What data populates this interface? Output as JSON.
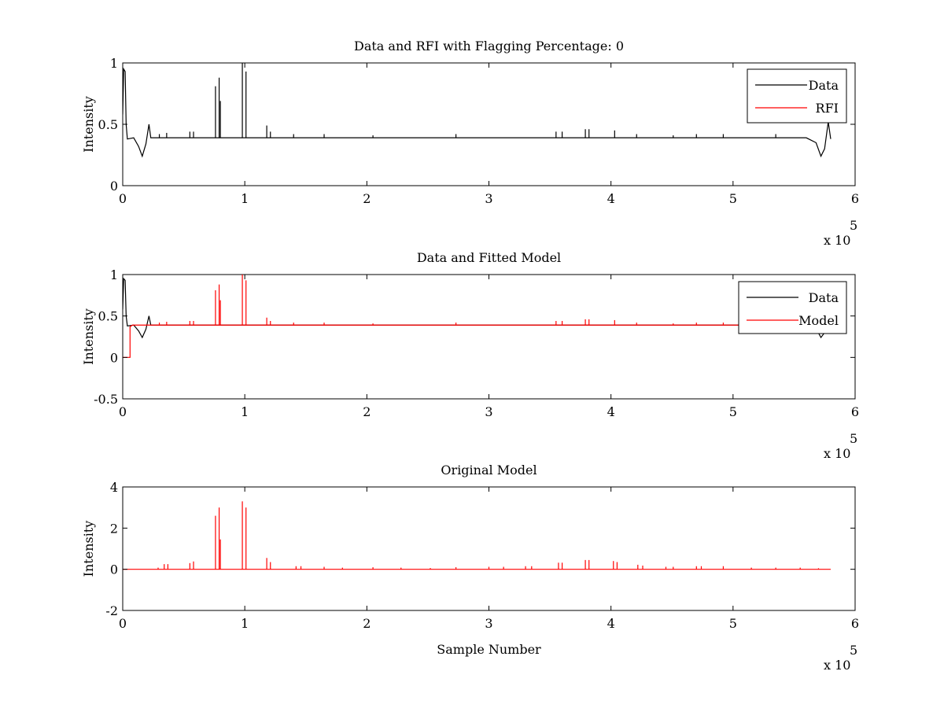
{
  "figure": {
    "background": "#ffffff"
  },
  "chart_data": [
    {
      "type": "line",
      "title": "Data and RFI with Flagging Percentage: 0",
      "xlabel": "",
      "ylabel": "Intensity",
      "xlim": [
        0,
        600000
      ],
      "ylim": [
        0,
        1
      ],
      "xticks": [
        0,
        100000,
        200000,
        300000,
        400000,
        500000,
        600000
      ],
      "xtick_labels": [
        "0",
        "1",
        "2",
        "3",
        "4",
        "5",
        "6"
      ],
      "yticks": [
        0,
        0.5,
        1
      ],
      "ytick_labels": [
        "0",
        "0.5",
        "1"
      ],
      "x_multiplier": "x 10",
      "x_multiplier_exp": "5",
      "legend": {
        "position": "top-right",
        "entries": [
          "Data",
          "RFI"
        ]
      },
      "series": [
        {
          "name": "Data",
          "color": "#000000",
          "baseline": 0.39,
          "points": [
            [
              0,
              0.58
            ],
            [
              800,
              0.95
            ],
            [
              2000,
              0.93
            ],
            [
              2800,
              0.5
            ],
            [
              3800,
              0.38
            ],
            [
              9000,
              0.39
            ],
            [
              13000,
              0.32
            ],
            [
              16000,
              0.24
            ],
            [
              19000,
              0.34
            ],
            [
              21500,
              0.5
            ],
            [
              23000,
              0.39
            ],
            [
              560000,
              0.39
            ],
            [
              568000,
              0.35
            ],
            [
              572000,
              0.24
            ],
            [
              575000,
              0.3
            ],
            [
              578000,
              0.52
            ],
            [
              580000,
              0.38
            ]
          ],
          "spikes": [
            [
              30000,
              0.42
            ],
            [
              36000,
              0.43
            ],
            [
              55000,
              0.44
            ],
            [
              58000,
              0.44
            ],
            [
              76000,
              0.81
            ],
            [
              79000,
              0.88
            ],
            [
              80000,
              0.69
            ],
            [
              98000,
              1.0
            ],
            [
              101000,
              0.93
            ],
            [
              118000,
              0.49
            ],
            [
              121000,
              0.44
            ],
            [
              140000,
              0.42
            ],
            [
              165000,
              0.42
            ],
            [
              205000,
              0.41
            ],
            [
              273000,
              0.42
            ],
            [
              355000,
              0.44
            ],
            [
              360000,
              0.44
            ],
            [
              379000,
              0.46
            ],
            [
              382000,
              0.46
            ],
            [
              403000,
              0.45
            ],
            [
              421000,
              0.42
            ],
            [
              451000,
              0.41
            ],
            [
              470000,
              0.42
            ],
            [
              492000,
              0.42
            ],
            [
              535000,
              0.42
            ]
          ]
        },
        {
          "name": "RFI",
          "color": "#ff0000",
          "points": []
        }
      ]
    },
    {
      "type": "line",
      "title": "Data and Fitted Model",
      "xlabel": "",
      "ylabel": "Intensity",
      "xlim": [
        0,
        600000
      ],
      "ylim": [
        -0.5,
        1
      ],
      "xticks": [
        0,
        100000,
        200000,
        300000,
        400000,
        500000,
        600000
      ],
      "xtick_labels": [
        "0",
        "1",
        "2",
        "3",
        "4",
        "5",
        "6"
      ],
      "yticks": [
        -0.5,
        0,
        0.5,
        1
      ],
      "ytick_labels": [
        "-0.5",
        "0",
        "0.5",
        "1"
      ],
      "x_multiplier": "x 10",
      "x_multiplier_exp": "5",
      "legend": {
        "position": "top-right",
        "entries": [
          "Data",
          "Model"
        ]
      },
      "series": [
        {
          "name": "Data",
          "color": "#000000",
          "baseline": 0.39,
          "points": [
            [
              0,
              0.58
            ],
            [
              800,
              0.95
            ],
            [
              2000,
              0.93
            ],
            [
              2800,
              0.5
            ],
            [
              3800,
              0.38
            ],
            [
              9000,
              0.39
            ],
            [
              13000,
              0.32
            ],
            [
              16000,
              0.24
            ],
            [
              19000,
              0.34
            ],
            [
              21500,
              0.5
            ],
            [
              23000,
              0.39
            ],
            [
              560000,
              0.39
            ],
            [
              568000,
              0.35
            ],
            [
              572000,
              0.24
            ],
            [
              575000,
              0.3
            ],
            [
              578000,
              0.52
            ],
            [
              580000,
              0.38
            ]
          ],
          "spikes": []
        },
        {
          "name": "Model",
          "color": "#ff0000",
          "baseline": 0.39,
          "points": [
            [
              0,
              0.0
            ],
            [
              6000,
              0.0
            ],
            [
              6000,
              0.37
            ],
            [
              8000,
              0.39
            ],
            [
              580000,
              0.39
            ]
          ],
          "spikes": [
            [
              30000,
              0.42
            ],
            [
              36000,
              0.43
            ],
            [
              55000,
              0.44
            ],
            [
              58000,
              0.44
            ],
            [
              76000,
              0.81
            ],
            [
              79000,
              0.88
            ],
            [
              80000,
              0.69
            ],
            [
              98000,
              1.0
            ],
            [
              101000,
              0.93
            ],
            [
              118000,
              0.48
            ],
            [
              121000,
              0.44
            ],
            [
              140000,
              0.42
            ],
            [
              165000,
              0.42
            ],
            [
              205000,
              0.41
            ],
            [
              273000,
              0.42
            ],
            [
              355000,
              0.44
            ],
            [
              360000,
              0.44
            ],
            [
              379000,
              0.46
            ],
            [
              382000,
              0.46
            ],
            [
              403000,
              0.45
            ],
            [
              421000,
              0.42
            ],
            [
              451000,
              0.41
            ],
            [
              470000,
              0.42
            ],
            [
              492000,
              0.42
            ],
            [
              535000,
              0.42
            ]
          ]
        }
      ]
    },
    {
      "type": "line",
      "title": "Original Model",
      "xlabel": "Sample Number",
      "ylabel": "Intensity",
      "xlim": [
        0,
        600000
      ],
      "ylim": [
        -2,
        4
      ],
      "xticks": [
        0,
        100000,
        200000,
        300000,
        400000,
        500000,
        600000
      ],
      "xtick_labels": [
        "0",
        "1",
        "2",
        "3",
        "4",
        "5",
        "6"
      ],
      "yticks": [
        -2,
        0,
        2,
        4
      ],
      "ytick_labels": [
        "-2",
        "0",
        "2",
        "4"
      ],
      "x_multiplier": "x 10",
      "x_multiplier_exp": "5",
      "legend": null,
      "series": [
        {
          "name": "",
          "color": "#ff0000",
          "baseline": 0,
          "points": [
            [
              0,
              0
            ],
            [
              580000,
              0
            ]
          ],
          "spikes": [
            [
              29000,
              0.08
            ],
            [
              34000,
              0.25
            ],
            [
              37000,
              0.25
            ],
            [
              55000,
              0.3
            ],
            [
              58000,
              0.38
            ],
            [
              76000,
              2.6
            ],
            [
              79000,
              3.0
            ],
            [
              80000,
              1.45
            ],
            [
              98000,
              3.3
            ],
            [
              101000,
              3.0
            ],
            [
              118000,
              0.55
            ],
            [
              121000,
              0.35
            ],
            [
              142000,
              0.15
            ],
            [
              146000,
              0.15
            ],
            [
              165000,
              0.12
            ],
            [
              180000,
              0.08
            ],
            [
              205000,
              0.1
            ],
            [
              228000,
              0.08
            ],
            [
              252000,
              0.06
            ],
            [
              273000,
              0.1
            ],
            [
              300000,
              0.12
            ],
            [
              312000,
              0.12
            ],
            [
              330000,
              0.15
            ],
            [
              335000,
              0.15
            ],
            [
              357000,
              0.32
            ],
            [
              360000,
              0.32
            ],
            [
              379000,
              0.45
            ],
            [
              382000,
              0.45
            ],
            [
              402000,
              0.4
            ],
            [
              405000,
              0.35
            ],
            [
              422000,
              0.22
            ],
            [
              426000,
              0.18
            ],
            [
              445000,
              0.12
            ],
            [
              451000,
              0.12
            ],
            [
              470000,
              0.15
            ],
            [
              474000,
              0.15
            ],
            [
              492000,
              0.15
            ],
            [
              515000,
              0.08
            ],
            [
              535000,
              0.08
            ],
            [
              555000,
              0.08
            ],
            [
              570000,
              0.05
            ]
          ]
        }
      ]
    }
  ]
}
